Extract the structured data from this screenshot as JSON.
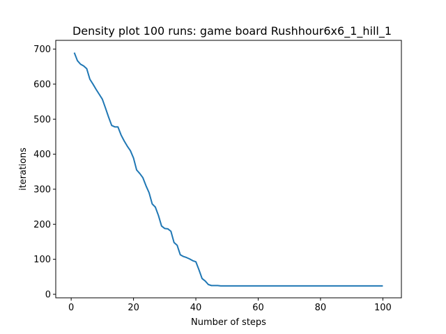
{
  "chart_data": {
    "type": "line",
    "title": "Density plot 100 runs: game board Rushhour6x6_1_hill_1",
    "xlabel": "Number of steps",
    "ylabel": "iterations",
    "xlim": [
      -4.95,
      105.95
    ],
    "ylim": [
      -10,
      725
    ],
    "xticks": [
      0,
      20,
      40,
      60,
      80,
      100
    ],
    "yticks": [
      0,
      100,
      200,
      300,
      400,
      500,
      600,
      700
    ],
    "grid": false,
    "line_color": "#1f77b4",
    "series": [
      {
        "x": [
          1,
          2,
          3,
          4,
          5,
          6,
          7,
          8,
          9,
          10,
          11,
          12,
          13,
          14,
          15,
          16,
          17,
          18,
          19,
          20,
          21,
          22,
          23,
          24,
          25,
          26,
          27,
          28,
          29,
          30,
          31,
          32,
          33,
          34,
          35,
          36,
          37,
          38,
          39,
          40,
          41,
          42,
          43,
          44,
          45,
          46,
          47,
          48,
          49,
          50,
          51,
          52,
          53,
          54,
          55,
          56,
          57,
          58,
          59,
          60,
          61,
          62,
          63,
          64,
          65,
          66,
          67,
          68,
          69,
          70,
          71,
          72,
          73,
          74,
          75,
          76,
          77,
          78,
          79,
          80,
          81,
          82,
          83,
          84,
          85,
          86,
          87,
          88,
          89,
          90,
          91,
          92,
          93,
          94,
          95,
          96,
          97,
          98,
          99,
          100
        ],
        "y": [
          690,
          667,
          657,
          652,
          644,
          614,
          600,
          585,
          571,
          557,
          532,
          506,
          482,
          478,
          478,
          455,
          438,
          423,
          410,
          389,
          355,
          345,
          333,
          310,
          290,
          258,
          249,
          225,
          195,
          188,
          187,
          180,
          148,
          140,
          113,
          108,
          105,
          101,
          96,
          93,
          70,
          45,
          38,
          28,
          25,
          25,
          25,
          24,
          24,
          24,
          24,
          24,
          24,
          24,
          24,
          24,
          24,
          24,
          24,
          24,
          24,
          24,
          24,
          24,
          24,
          24,
          24,
          24,
          24,
          24,
          24,
          24,
          24,
          24,
          24,
          24,
          24,
          24,
          24,
          24,
          24,
          24,
          24,
          24,
          24,
          24,
          24,
          24,
          24,
          24,
          24,
          24,
          24,
          24,
          24,
          24,
          24,
          24,
          24,
          24
        ]
      }
    ]
  }
}
